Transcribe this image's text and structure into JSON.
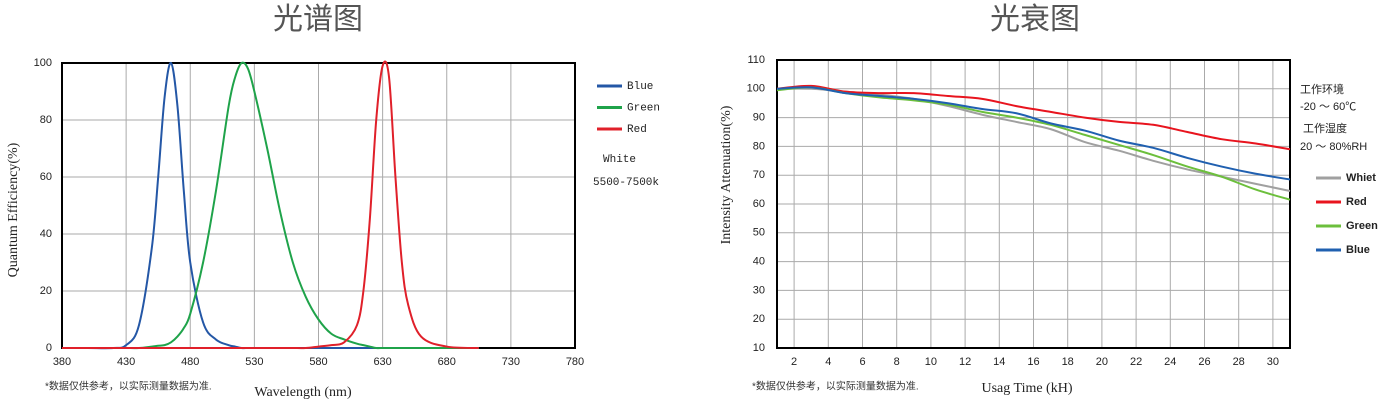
{
  "chart_data": [
    {
      "type": "line",
      "title": "光谱图",
      "x_label": "Wavelength  (nm)",
      "y_label": "Quantum  Efficiency(%)",
      "footnote": "*数据仅供参考，以实际测量数据为准.",
      "notes": [
        "White",
        "5500-7500k"
      ],
      "x": [
        380,
        400,
        420,
        430,
        440,
        450,
        455,
        460,
        465,
        470,
        475,
        480,
        490,
        500,
        510,
        515,
        520,
        525,
        530,
        540,
        550,
        560,
        570,
        580,
        590,
        600,
        610,
        615,
        620,
        625,
        630,
        635,
        640,
        645,
        650,
        660,
        680,
        705
      ],
      "series": [
        {
          "name": "Blue",
          "color": "#2457a6",
          "values": [
            0,
            0,
            0,
            1,
            8,
            35,
            60,
            88,
            100,
            85,
            55,
            30,
            9,
            3,
            1,
            0.5,
            0,
            0,
            0,
            0,
            0,
            0,
            0,
            0,
            0,
            0,
            0,
            0,
            0,
            0,
            0,
            0,
            0,
            0,
            0,
            0,
            0,
            0
          ]
        },
        {
          "name": "Green",
          "color": "#1fa34a",
          "values": [
            0,
            0,
            0,
            0,
            0,
            0.5,
            0.8,
            1,
            2,
            4,
            7,
            12,
            30,
            55,
            85,
            95,
            100,
            98,
            90,
            70,
            48,
            30,
            18,
            10,
            5,
            3,
            1.5,
            1,
            0.5,
            0,
            0,
            0,
            0,
            0,
            0,
            0,
            0,
            0
          ]
        },
        {
          "name": "Red",
          "color": "#e0202a",
          "values": [
            0,
            0,
            0,
            0,
            0,
            0,
            0,
            0,
            0,
            0,
            0,
            0,
            0,
            0,
            0,
            0,
            0,
            0,
            0,
            0,
            0,
            0,
            0,
            0.5,
            1,
            2,
            8,
            20,
            45,
            80,
            99,
            95,
            60,
            30,
            15,
            4,
            0.5,
            0
          ]
        }
      ],
      "xlim": [
        380,
        780
      ],
      "xticks": [
        380,
        430,
        480,
        530,
        580,
        630,
        680,
        730,
        780
      ],
      "ylim": [
        0,
        100
      ],
      "yticks": [
        0,
        20,
        40,
        60,
        80,
        100
      ],
      "grid": true
    },
    {
      "type": "line",
      "title": "光衰图",
      "x_label": "Usag Time (kH)",
      "y_label": "Intensity Attenuation(%)",
      "footnote": "*数据仅供参考，以实际测量数据为准.",
      "notes": [
        "工作环境",
        "-20 ～ 60℃",
        "工作湿度",
        "20 ～ 80%RH"
      ],
      "x": [
        1,
        3,
        5,
        7,
        9,
        11,
        13,
        15,
        17,
        19,
        21,
        23,
        25,
        27,
        29,
        31
      ],
      "series": [
        {
          "name": "Whiet",
          "color": "#a0a0a0",
          "values": [
            100,
            100,
            99,
            98,
            96.5,
            94,
            91,
            88.5,
            86,
            81.5,
            78.5,
            75,
            72,
            69.5,
            67,
            64.5
          ]
        },
        {
          "name": "Red",
          "color": "#e8141e",
          "values": [
            100,
            101,
            99,
            98.5,
            98.5,
            97.5,
            96.5,
            94,
            92,
            90,
            88.5,
            87.5,
            85,
            82.5,
            81,
            79
          ]
        },
        {
          "name": "Green",
          "color": "#6cbf3c",
          "values": [
            99.5,
            100.5,
            98.5,
            97,
            96,
            94.5,
            92,
            90,
            87.5,
            84,
            80.5,
            77,
            73,
            69.5,
            65,
            61.5
          ]
        },
        {
          "name": "Blue",
          "color": "#2060b0",
          "values": [
            100,
            100.5,
            98.5,
            97.5,
            96.5,
            95,
            93,
            91.5,
            88,
            85.5,
            82,
            79.5,
            76,
            73,
            70.5,
            68.5
          ]
        }
      ],
      "xlim": [
        1,
        31
      ],
      "xticks": [
        2,
        4,
        6,
        8,
        10,
        12,
        14,
        16,
        18,
        20,
        22,
        24,
        26,
        28,
        30
      ],
      "ylim": [
        10,
        110
      ],
      "yticks": [
        10,
        20,
        30,
        40,
        50,
        60,
        70,
        80,
        90,
        100,
        110
      ],
      "grid": true
    }
  ]
}
